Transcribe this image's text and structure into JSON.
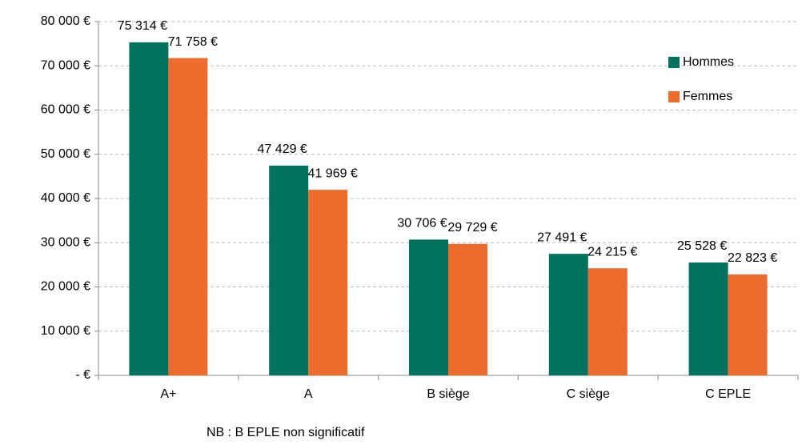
{
  "chart_data": {
    "type": "bar",
    "categories": [
      "A+",
      "A",
      "B siège",
      "C siège",
      "C EPLE"
    ],
    "series": [
      {
        "name": "Hommes",
        "color": "#00735f",
        "values": [
          75314,
          47429,
          30706,
          27491,
          25528
        ],
        "value_labels": [
          "75 314 €",
          "47 429 €",
          "30 706 €",
          "27 491 €",
          "25 528 €"
        ]
      },
      {
        "name": "Femmes",
        "color": "#ec6c2d",
        "values": [
          71758,
          41969,
          29729,
          24215,
          22823
        ],
        "value_labels": [
          "71 758 €",
          "41 969 €",
          "29 729 €",
          "24 215 €",
          "22 823 €"
        ]
      }
    ],
    "ylim": [
      0,
      80000
    ],
    "yticks": [
      {
        "value": 0,
        "label": "-   €"
      },
      {
        "value": 10000,
        "label": "10 000 €"
      },
      {
        "value": 20000,
        "label": "20 000 €"
      },
      {
        "value": 30000,
        "label": "30 000 €"
      },
      {
        "value": 40000,
        "label": "40 000 €"
      },
      {
        "value": 50000,
        "label": "50 000 €"
      },
      {
        "value": 60000,
        "label": "60 000 €"
      },
      {
        "value": 70000,
        "label": "70 000 €"
      },
      {
        "value": 80000,
        "label": "80 000 €"
      }
    ],
    "grid": true,
    "legend": "upper right",
    "note": "NB : B EPLE non significatif"
  }
}
